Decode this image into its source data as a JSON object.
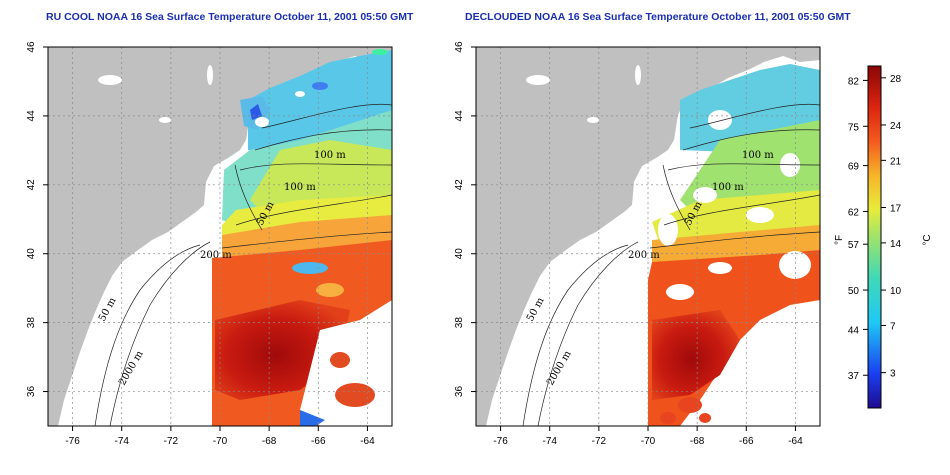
{
  "chart_data": [
    {
      "type": "heatmap",
      "title": "RU COOL NOAA 16 Sea Surface Temperature October 11, 2001 05:50 GMT",
      "xlabel": "",
      "ylabel": "",
      "xlim": [
        -77,
        -63
      ],
      "ylim": [
        35,
        46
      ],
      "x_ticks": [
        -76,
        -74,
        -72,
        -70,
        -68,
        -66,
        -64
      ],
      "y_ticks": [
        36,
        38,
        40,
        42,
        44,
        46
      ],
      "grid": true,
      "contour_labels": [
        "100 m",
        "100 m",
        "50 m",
        "200 m",
        "50 m",
        "2000 m"
      ]
    },
    {
      "type": "heatmap",
      "title": "DECLOUDED NOAA 16 Sea Surface Temperature October 11, 2001 05:50 GMT",
      "xlabel": "",
      "ylabel": "",
      "xlim": [
        -77,
        -63
      ],
      "ylim": [
        35,
        46
      ],
      "x_ticks": [
        -76,
        -74,
        -72,
        -70,
        -68,
        -66,
        -64
      ],
      "y_ticks": [
        36,
        38,
        40,
        42,
        44,
        46
      ],
      "grid": true,
      "contour_labels": [
        "100 m",
        "100 m",
        "50 m",
        "200 m",
        "50 m",
        "2000 m"
      ]
    }
  ],
  "colorbar": {
    "fahrenheit_label": "°F",
    "celsius_label": "°C",
    "fahrenheit_ticks": [
      82,
      75,
      69,
      62,
      57,
      50,
      44,
      37
    ],
    "celsius_ticks": [
      28,
      24,
      21,
      17,
      14,
      10,
      7,
      3
    ],
    "celsius_range": [
      0,
      29
    ]
  },
  "colors": {
    "land": "#c0c0c0",
    "cloud": "#ffffff",
    "title": "#1a2fb0",
    "grid": "#999999"
  }
}
